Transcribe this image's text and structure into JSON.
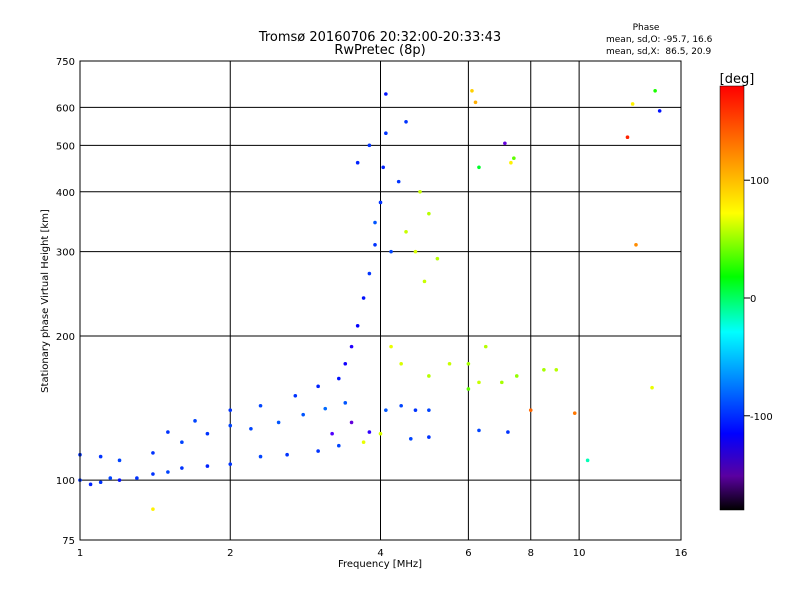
{
  "chart_data": {
    "type": "scatter",
    "title": "Tromsø 20160706 20:32:00-20:33:43",
    "subtitle": "RwPretec (8p)",
    "xlabel": "Frequency [MHz]",
    "ylabel": "Stationary phase Virtual Height [km]",
    "xscale": "log",
    "yscale": "log",
    "xlim": [
      1,
      16
    ],
    "ylim": [
      75,
      750
    ],
    "x_ticks": [
      "1",
      "2",
      "4",
      "6",
      "8",
      "10",
      "16"
    ],
    "y_ticks": [
      "75",
      "100",
      "200",
      "300",
      "400",
      "500",
      "600",
      "750"
    ],
    "grid": true,
    "colorbar": {
      "label": "[deg]",
      "ticks": [
        "100",
        "0",
        "-100"
      ],
      "range": [
        -180,
        180
      ]
    },
    "phase_stats": {
      "heading": "Phase",
      "line_o": "mean, sd,O: -95.7, 16.6",
      "line_x": "mean, sd,X:  86.5, 20.9"
    },
    "series": [
      {
        "points": [
          [
            1.0,
            100,
            -100
          ],
          [
            1.05,
            98,
            -105
          ],
          [
            1.1,
            99,
            -100
          ],
          [
            1.15,
            101,
            -95
          ],
          [
            1.2,
            100,
            -110
          ],
          [
            1.3,
            101,
            -100
          ],
          [
            1.4,
            103,
            -100
          ],
          [
            1.5,
            104,
            -95
          ],
          [
            1.6,
            106,
            -100
          ],
          [
            1.8,
            107,
            -105
          ],
          [
            2.0,
            108,
            -100
          ],
          [
            2.3,
            112,
            -95
          ],
          [
            2.6,
            113,
            -100
          ],
          [
            3.0,
            115,
            -100
          ],
          [
            3.3,
            118,
            -95
          ],
          [
            1.0,
            113,
            -100
          ],
          [
            1.1,
            112,
            -100
          ],
          [
            1.2,
            110,
            -95
          ],
          [
            1.4,
            114,
            -100
          ],
          [
            1.6,
            120,
            -95
          ],
          [
            1.8,
            125,
            -100
          ],
          [
            2.0,
            130,
            -95
          ],
          [
            2.2,
            128,
            -95
          ],
          [
            2.5,
            132,
            -90
          ],
          [
            2.8,
            137,
            -90
          ],
          [
            3.1,
            141,
            -85
          ],
          [
            3.4,
            145,
            -90
          ],
          [
            1.5,
            126,
            -100
          ],
          [
            1.7,
            133,
            -95
          ],
          [
            2.0,
            140,
            -100
          ],
          [
            2.3,
            143,
            -95
          ],
          [
            2.7,
            150,
            -100
          ],
          [
            3.0,
            157,
            -105
          ],
          [
            3.3,
            163,
            -110
          ],
          [
            3.4,
            175,
            -120
          ],
          [
            3.5,
            190,
            -125
          ],
          [
            3.6,
            210,
            -115
          ],
          [
            3.7,
            240,
            -110
          ],
          [
            3.8,
            270,
            -100
          ],
          [
            3.9,
            310,
            -100
          ],
          [
            4.0,
            380,
            -100
          ],
          [
            4.05,
            450,
            -105
          ],
          [
            4.1,
            530,
            -100
          ],
          [
            4.1,
            640,
            -110
          ],
          [
            3.6,
            460,
            -105
          ],
          [
            3.8,
            500,
            -100
          ],
          [
            3.9,
            345,
            -90
          ],
          [
            4.2,
            300,
            -95
          ],
          [
            4.35,
            420,
            -100
          ],
          [
            4.5,
            560,
            -100
          ],
          [
            4.1,
            140,
            -90
          ],
          [
            4.4,
            143,
            -95
          ],
          [
            4.7,
            140,
            -100
          ],
          [
            5.0,
            140,
            -95
          ],
          [
            4.6,
            122,
            -95
          ],
          [
            5.0,
            123,
            -100
          ],
          [
            6.3,
            127,
            -95
          ],
          [
            7.2,
            126,
            -100
          ],
          [
            3.2,
            125,
            -140
          ],
          [
            3.5,
            132,
            -150
          ],
          [
            3.8,
            126,
            -130
          ],
          [
            4.5,
            330,
            90
          ],
          [
            4.7,
            300,
            95
          ],
          [
            4.8,
            400,
            90
          ],
          [
            5.0,
            360,
            85
          ],
          [
            4.9,
            260,
            90
          ],
          [
            5.2,
            290,
            85
          ],
          [
            5.5,
            175,
            90
          ],
          [
            5.0,
            165,
            85
          ],
          [
            4.4,
            175,
            95
          ],
          [
            6.0,
            175,
            80
          ],
          [
            6.3,
            160,
            90
          ],
          [
            7.0,
            160,
            80
          ],
          [
            7.5,
            165,
            75
          ],
          [
            8.5,
            170,
            80
          ],
          [
            9.0,
            170,
            85
          ],
          [
            4.2,
            190,
            100
          ],
          [
            4.0,
            125,
            95
          ],
          [
            3.7,
            120,
            100
          ],
          [
            1.4,
            87,
            110
          ],
          [
            6.0,
            155,
            60
          ],
          [
            6.5,
            190,
            85
          ],
          [
            6.1,
            650,
            120
          ],
          [
            6.2,
            615,
            130
          ],
          [
            12.5,
            520,
            170
          ],
          [
            12.8,
            610,
            110
          ],
          [
            13.0,
            310,
            140
          ],
          [
            14.2,
            650,
            40
          ],
          [
            14.5,
            590,
            -110
          ],
          [
            14.0,
            156,
            100
          ],
          [
            10.4,
            110,
            -20
          ],
          [
            6.3,
            450,
            20
          ],
          [
            7.3,
            460,
            110
          ],
          [
            7.1,
            505,
            -150
          ],
          [
            7.4,
            470,
            60
          ],
          [
            8.0,
            140,
            150
          ],
          [
            9.8,
            138,
            145
          ]
        ]
      }
    ]
  }
}
